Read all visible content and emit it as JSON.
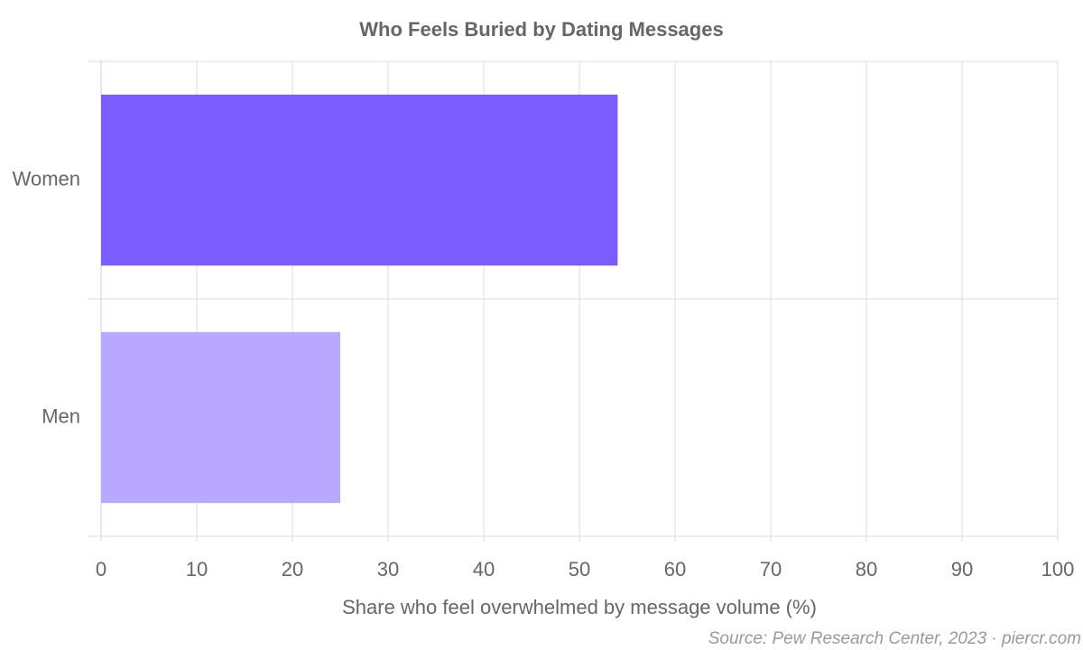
{
  "chart_data": {
    "type": "bar",
    "orientation": "horizontal",
    "title": "Who Feels Buried by Dating Messages",
    "x_label": "Share who feel overwhelmed by message volume (%)",
    "source": "Source: Pew Research Center, 2023 · piercr.com",
    "categories": [
      "Women",
      "Men"
    ],
    "values": [
      54,
      25
    ],
    "colors": [
      "#7b5cff",
      "#b8a8ff"
    ],
    "xlim": [
      0,
      100
    ],
    "xticks": [
      0,
      10,
      20,
      30,
      40,
      50,
      60,
      70,
      80,
      90,
      100
    ],
    "grid": true
  }
}
